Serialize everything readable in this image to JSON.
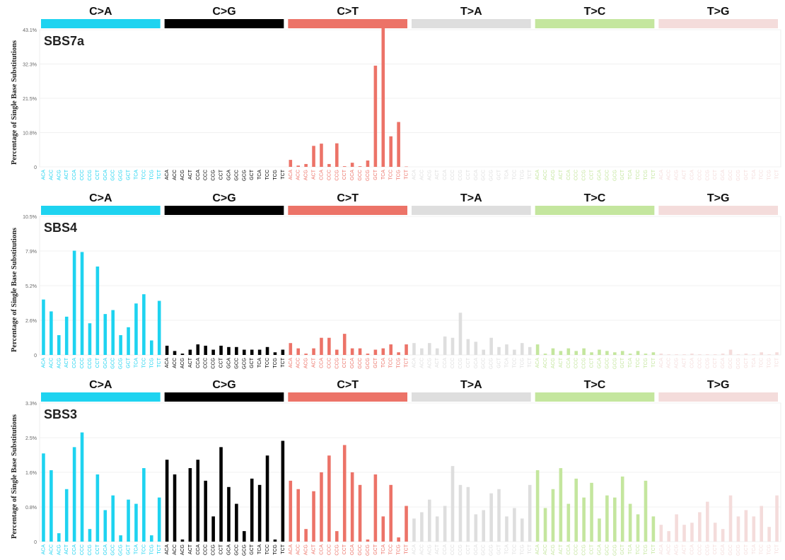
{
  "chart_data": [
    {
      "type": "bar",
      "title": "SBS7a",
      "ylabel": "Percentage of Single Base Substitutions",
      "ylim": [
        0,
        43.1
      ],
      "yticks": [
        "0",
        "10.8%",
        "21.5%",
        "32.3%",
        "43.1%"
      ],
      "grid": true,
      "categories": [
        "ACA",
        "ACC",
        "ACG",
        "ACT",
        "CCA",
        "CCC",
        "CCG",
        "CCT",
        "GCA",
        "GCC",
        "GCG",
        "GCT",
        "TCA",
        "TCC",
        "TCG",
        "TCT"
      ],
      "bands": [
        {
          "label": "C>A",
          "color": "#1ed3f0"
        },
        {
          "label": "C>G",
          "color": "#000000"
        },
        {
          "label": "C>T",
          "color": "#ec7368"
        },
        {
          "label": "T>A",
          "color": "#dedede"
        },
        {
          "label": "T>C",
          "color": "#c4e69e"
        },
        {
          "label": "T>G",
          "color": "#f4dcdb"
        }
      ],
      "series": [
        {
          "group": "C>A",
          "values": [
            0,
            0,
            0,
            0,
            0,
            0,
            0,
            0,
            0,
            0,
            0,
            0,
            0,
            0,
            0,
            0
          ]
        },
        {
          "group": "C>G",
          "values": [
            0,
            0,
            0,
            0,
            0,
            0,
            0,
            0,
            0,
            0,
            0,
            0,
            0,
            0,
            0,
            0
          ]
        },
        {
          "group": "C>T",
          "values": [
            2.2,
            0.4,
            0.9,
            6.6,
            7.3,
            0.9,
            7.4,
            0.2,
            1.3,
            0.2,
            2.0,
            31.8,
            43.8,
            9.6,
            14.1,
            0.1
          ]
        },
        {
          "group": "T>A",
          "values": [
            0,
            0,
            0,
            0,
            0,
            0,
            0,
            0,
            0,
            0,
            0,
            0,
            0,
            0,
            0,
            0
          ]
        },
        {
          "group": "T>C",
          "values": [
            0,
            0,
            0,
            0,
            0,
            0,
            0,
            0,
            0,
            0,
            0,
            0,
            0,
            0,
            0,
            0
          ]
        },
        {
          "group": "T>G",
          "values": [
            0,
            0,
            0,
            0,
            0,
            0,
            0,
            0,
            0,
            0,
            0,
            0,
            0,
            0,
            0,
            0
          ]
        }
      ]
    },
    {
      "type": "bar",
      "title": "SBS4",
      "ylabel": "Percentage of Single Base Substitutions",
      "ylim": [
        0,
        10.5
      ],
      "yticks": [
        "0",
        "2.6%",
        "5.2%",
        "7.9%",
        "10.5%"
      ],
      "grid": true,
      "categories": [
        "ACA",
        "ACC",
        "ACG",
        "ACT",
        "CCA",
        "CCC",
        "CCG",
        "CCT",
        "GCA",
        "GCC",
        "GCG",
        "GCT",
        "TCA",
        "TCC",
        "TCG",
        "TCT"
      ],
      "bands": [
        {
          "label": "C>A",
          "color": "#1ed3f0"
        },
        {
          "label": "C>G",
          "color": "#000000"
        },
        {
          "label": "C>T",
          "color": "#ec7368"
        },
        {
          "label": "T>A",
          "color": "#dedede"
        },
        {
          "label": "T>C",
          "color": "#c4e69e"
        },
        {
          "label": "T>G",
          "color": "#f4dcdb"
        }
      ],
      "series": [
        {
          "group": "C>A",
          "values": [
            4.2,
            3.3,
            1.5,
            2.9,
            7.9,
            7.8,
            2.4,
            6.7,
            3.1,
            3.4,
            1.5,
            2.1,
            3.9,
            4.6,
            1.1,
            4.1
          ]
        },
        {
          "group": "C>G",
          "values": [
            0.7,
            0.3,
            0.1,
            0.4,
            0.8,
            0.7,
            0.4,
            0.7,
            0.6,
            0.6,
            0.4,
            0.4,
            0.4,
            0.6,
            0.2,
            0.4
          ]
        },
        {
          "group": "C>T",
          "values": [
            0.9,
            0.5,
            0.1,
            0.5,
            1.3,
            1.3,
            0.4,
            1.6,
            0.5,
            0.5,
            0.1,
            0.4,
            0.5,
            0.8,
            0.2,
            0.8
          ]
        },
        {
          "group": "T>A",
          "values": [
            0.9,
            0.5,
            0.9,
            0.5,
            1.4,
            1.3,
            3.2,
            1.2,
            1.0,
            0.4,
            1.3,
            0.6,
            0.8,
            0.4,
            0.9,
            0.6
          ]
        },
        {
          "group": "T>C",
          "values": [
            0.8,
            0.1,
            0.5,
            0.3,
            0.5,
            0.3,
            0.5,
            0.2,
            0.4,
            0.3,
            0.2,
            0.3,
            0.1,
            0.3,
            0.1,
            0.2
          ]
        },
        {
          "group": "T>G",
          "values": [
            0.1,
            0.05,
            0.05,
            0.05,
            0.1,
            0.05,
            0.05,
            0.05,
            0.1,
            0.4,
            0.05,
            0.1,
            0.05,
            0.2,
            0.05,
            0.2
          ]
        }
      ]
    },
    {
      "type": "bar",
      "title": "SBS3",
      "ylabel": "Percentage of Single Base Substitutions",
      "ylim": [
        0,
        3.3
      ],
      "yticks": [
        "0",
        "0.8%",
        "1.6%",
        "2.5%",
        "3.3%"
      ],
      "grid": true,
      "categories": [
        "ACA",
        "ACC",
        "ACG",
        "ACT",
        "CCA",
        "CCC",
        "CCG",
        "CCT",
        "GCA",
        "GCC",
        "GCG",
        "GCT",
        "TCA",
        "TCC",
        "TCG",
        "TCT"
      ],
      "bands": [
        {
          "label": "C>A",
          "color": "#1ed3f0"
        },
        {
          "label": "C>G",
          "color": "#000000"
        },
        {
          "label": "C>T",
          "color": "#ec7368"
        },
        {
          "label": "T>A",
          "color": "#dedede"
        },
        {
          "label": "T>C",
          "color": "#c4e69e"
        },
        {
          "label": "T>G",
          "color": "#f4dcdb"
        }
      ],
      "series": [
        {
          "group": "C>A",
          "values": [
            2.1,
            1.7,
            0.2,
            1.25,
            2.25,
            2.6,
            0.3,
            1.6,
            0.75,
            1.1,
            0.15,
            1.0,
            0.9,
            1.75,
            0.15,
            1.05
          ]
        },
        {
          "group": "C>G",
          "values": [
            1.95,
            1.6,
            0.05,
            1.75,
            1.95,
            1.45,
            0.6,
            2.25,
            1.3,
            0.9,
            0.25,
            1.5,
            1.35,
            2.05,
            0.05,
            2.4
          ]
        },
        {
          "group": "C>T",
          "values": [
            1.45,
            1.25,
            0.3,
            1.2,
            1.65,
            2.05,
            0.25,
            2.3,
            1.65,
            1.35,
            0.05,
            1.6,
            0.6,
            1.35,
            0.1,
            0.85
          ]
        },
        {
          "group": "T>A",
          "values": [
            0.55,
            0.7,
            1.0,
            0.6,
            0.85,
            1.8,
            1.35,
            1.3,
            0.65,
            0.75,
            1.15,
            1.25,
            0.6,
            0.8,
            0.55,
            1.35
          ]
        },
        {
          "group": "T>C",
          "values": [
            1.7,
            0.8,
            1.25,
            1.75,
            0.9,
            1.5,
            1.05,
            1.4,
            0.55,
            1.1,
            1.05,
            1.55,
            0.9,
            0.65,
            1.45,
            0.6
          ]
        },
        {
          "group": "T>G",
          "values": [
            0.4,
            0.25,
            0.65,
            0.4,
            0.45,
            0.7,
            0.95,
            0.45,
            0.3,
            1.1,
            0.6,
            0.75,
            0.6,
            0.85,
            0.35,
            1.1
          ]
        }
      ]
    }
  ]
}
